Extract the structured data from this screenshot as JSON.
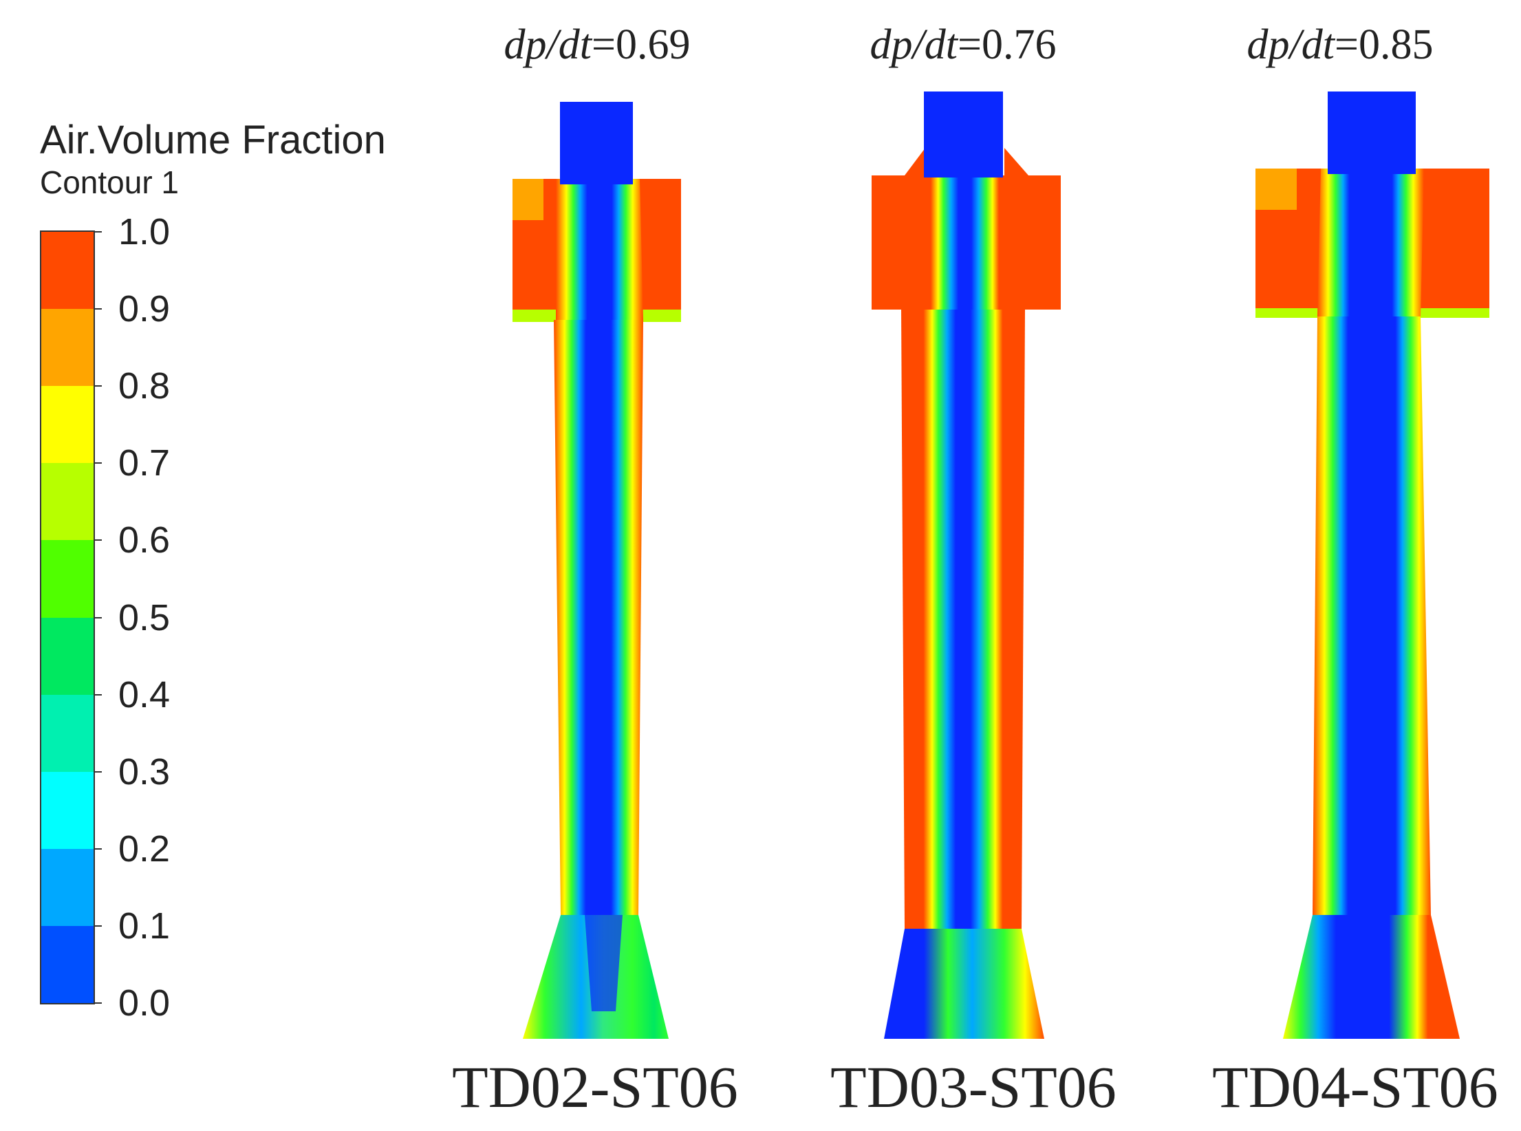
{
  "legend": {
    "title": "Air.Volume Fraction",
    "subtitle": "Contour 1",
    "ticks": [
      "1.0",
      "0.9",
      "0.8",
      "0.7",
      "0.6",
      "0.5",
      "0.4",
      "0.3",
      "0.2",
      "0.1",
      "0.0"
    ],
    "band_colors": [
      "#ff4a00",
      "#ffa500",
      "#ffff00",
      "#b7ff00",
      "#50ff00",
      "#00e860",
      "#00f0b0",
      "#00ffff",
      "#00a8ff",
      "#0050ff"
    ]
  },
  "panels": [
    {
      "rate_prefix": "dp/dt",
      "rate_value": "=0.69",
      "case": "TD02-ST06"
    },
    {
      "rate_prefix": "dp/dt",
      "rate_value": "=0.76",
      "case": "TD03-ST06"
    },
    {
      "rate_prefix": "dp/dt",
      "rate_value": "=0.85",
      "case": "TD04-ST06"
    }
  ],
  "colors": {
    "air": "#ff4a00",
    "water": "#0a28ff",
    "mix_green": "#30ff30",
    "mix_yellow": "#ffff00",
    "mix_cyan": "#00c8ff"
  }
}
